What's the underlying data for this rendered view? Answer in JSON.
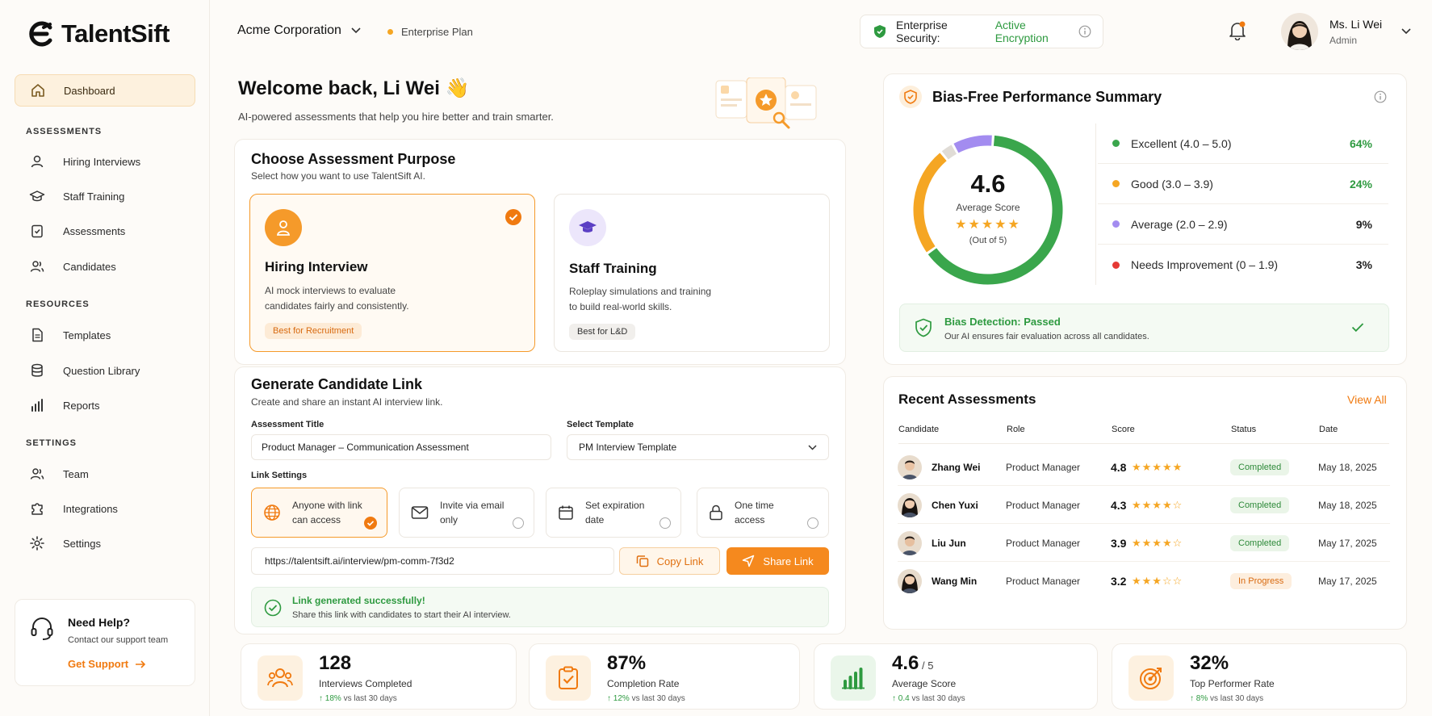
{
  "app": {
    "name": "TalentSift"
  },
  "sidebar": {
    "dashboard": "Dashboard",
    "sections": {
      "assessments": "ASSESSMENTS",
      "resources": "RESOURCES",
      "settings": "SETTINGS"
    },
    "items": [
      "Hiring Interviews",
      "Staff Training",
      "Assessments",
      "Candidates",
      "Templates",
      "Question Library",
      "Reports",
      "Team",
      "Integrations",
      "Settings"
    ],
    "help": {
      "title": "Need Help?",
      "subtitle": "Contact our support team",
      "link": "Get Support"
    }
  },
  "topbar": {
    "org": "Acme Corporation",
    "plan": "Enterprise Plan",
    "security_label": "Enterprise Security:",
    "security_status": "Active Encryption",
    "user_name": "Ms. Li Wei",
    "user_role": "Admin"
  },
  "welcome": {
    "title": "Welcome back, Li Wei 👋",
    "subtitle": "AI-powered assessments that help you hire better and train smarter."
  },
  "purpose": {
    "title": "Choose Assessment Purpose",
    "subtitle": "Select how you want to use TalentSift AI.",
    "hiring": {
      "title": "Hiring Interview",
      "desc1": "AI mock interviews to evaluate",
      "desc2": "candidates fairly and consistently.",
      "badge": "Best for Recruitment"
    },
    "training": {
      "title": "Staff Training",
      "desc1": "Roleplay simulations and training",
      "desc2": "to build real-world skills.",
      "badge": "Best for L&D"
    }
  },
  "link_gen": {
    "title": "Generate Candidate Link",
    "subtitle": "Create and share an instant AI interview link.",
    "assessment_title_label": "Assessment Title",
    "assessment_title_value": "Product Manager – Communication Assessment",
    "template_label": "Select Template",
    "template_value": "PM Interview Template",
    "settings_label": "Link Settings",
    "options": [
      {
        "l1": "Anyone with link",
        "l2": "can access"
      },
      {
        "l1": "Invite via email",
        "l2": "only"
      },
      {
        "l1": "Set expiration",
        "l2": "date"
      },
      {
        "l1": "One time",
        "l2": "access"
      }
    ],
    "url": "https://talentsift.ai/interview/pm-comm-7f3d2",
    "copy": "Copy Link",
    "share": "Share Link",
    "success_title": "Link generated successfully!",
    "success_desc": "Share this link with candidates to start their AI interview."
  },
  "bias": {
    "title": "Bias-Free Performance Summary",
    "score": "4.6",
    "score_label": "Average Score",
    "score_out": "(Out of 5)",
    "detection_title": "Bias Detection: Passed",
    "detection_desc": "Our AI ensures fair evaluation across all candidates."
  },
  "chart_data": {
    "type": "pie",
    "categories": [
      "Excellent (4.0 – 5.0)",
      "Good (3.0 – 3.9)",
      "Average (2.0 – 2.9)",
      "Needs Improvement (0 – 1.9)"
    ],
    "values": [
      64,
      24,
      9,
      3
    ],
    "labels": [
      "64%",
      "24%",
      "9%",
      "3%"
    ],
    "colors": [
      "#3aa64c",
      "#f5a623",
      "#a38cf0",
      "#e0dcd6"
    ],
    "legend_dot_colors": [
      "#3aa64c",
      "#f5a623",
      "#a38cf0",
      "#e53935"
    ]
  },
  "recent": {
    "title": "Recent Assessments",
    "view_all": "View All",
    "headers": [
      "Candidate",
      "Role",
      "Score",
      "Status",
      "Date"
    ],
    "rows": [
      {
        "name": "Zhang Wei",
        "role": "Product Manager",
        "score": "4.8",
        "stars": "★★★★★",
        "status": "Completed",
        "date": "May 18, 2025"
      },
      {
        "name": "Chen Yuxi",
        "role": "Product Manager",
        "score": "4.3",
        "stars": "★★★★☆",
        "status": "Completed",
        "date": "May 18, 2025"
      },
      {
        "name": "Liu Jun",
        "role": "Product Manager",
        "score": "3.9",
        "stars": "★★★★☆",
        "status": "Completed",
        "date": "May 17, 2025"
      },
      {
        "name": "Wang Min",
        "role": "Product Manager",
        "score": "3.2",
        "stars": "★★★☆☆",
        "status": "In Progress",
        "date": "May 17, 2025"
      }
    ]
  },
  "stats": [
    {
      "value": "128",
      "suffix": "",
      "label": "Interviews Completed",
      "delta": "18%",
      "delta_text": " vs last 30 days"
    },
    {
      "value": "87%",
      "suffix": "",
      "label": "Completion Rate",
      "delta": "12%",
      "delta_text": " vs last 30 days"
    },
    {
      "value": "4.6",
      "suffix": " / 5",
      "label": "Average Score",
      "delta": "0.4",
      "delta_text": " vs last 30 days"
    },
    {
      "value": "32%",
      "suffix": "",
      "label": "Top Performer Rate",
      "delta": "8%",
      "delta_text": " vs last 30 days"
    }
  ]
}
